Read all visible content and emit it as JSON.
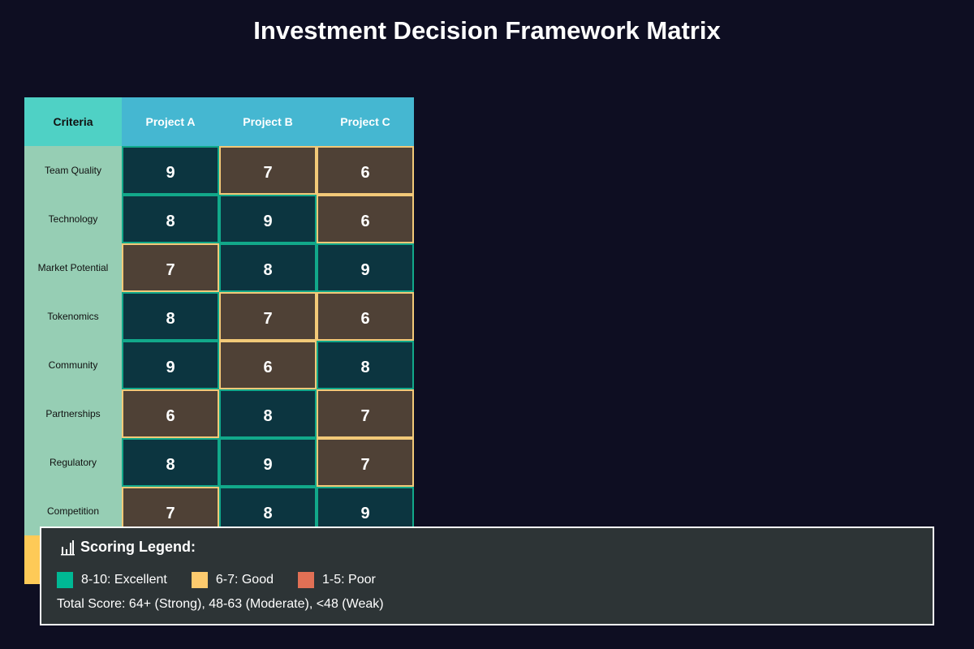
{
  "title": "Investment Decision Framework Matrix",
  "colors": {
    "excellent": "#00b894",
    "good": "#fdcb6e",
    "poor": "#e17055",
    "criteria_header": "#4fd1c5",
    "project_header": "#45b7d1",
    "criteria_column": "#96ceb4",
    "total_row": "#feca57"
  },
  "chart_data": {
    "type": "heatmap",
    "columns": [
      "Criteria",
      "Project A",
      "Project B",
      "Project C"
    ],
    "projects": [
      "Project A",
      "Project B",
      "Project C"
    ],
    "criteria": [
      "Team Quality",
      "Technology",
      "Market Potential",
      "Tokenomics",
      "Community",
      "Partnerships",
      "Regulatory",
      "Competition"
    ],
    "scores": [
      [
        9,
        7,
        6
      ],
      [
        8,
        9,
        6
      ],
      [
        7,
        8,
        9
      ],
      [
        8,
        7,
        6
      ],
      [
        9,
        6,
        8
      ],
      [
        6,
        8,
        7
      ],
      [
        8,
        9,
        7
      ],
      [
        7,
        8,
        9
      ]
    ],
    "thresholds": {
      "excellent_min": 8,
      "good_min": 6
    }
  },
  "legend": {
    "title": "Scoring Legend:",
    "icon": "bar-chart-icon",
    "items": [
      {
        "label": "8-10: Excellent",
        "color": "#00b894"
      },
      {
        "label": "6-7: Good",
        "color": "#fdcb6e"
      },
      {
        "label": "1-5: Poor",
        "color": "#e17055"
      }
    ],
    "note": "Total Score: 64+ (Strong), 48-63 (Moderate), <48 (Weak)"
  }
}
